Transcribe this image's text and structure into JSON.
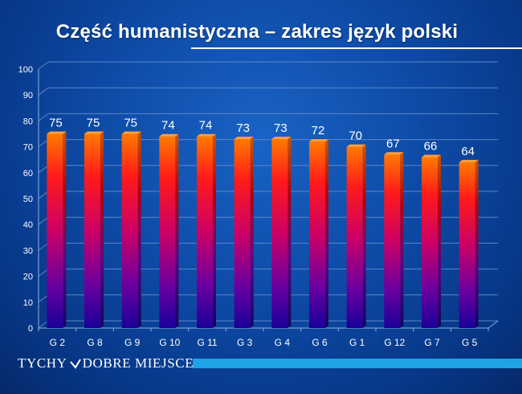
{
  "slide": {
    "title": "Część humanistyczna  – zakres język polski",
    "logo": {
      "left": "TYCHY",
      "right": "DOBRE MIEJSCE"
    }
  },
  "colors": {
    "bar_top": "#ff7a00",
    "bar_mid": "#ff0033",
    "bar_bottom": "#1a0099",
    "footer_bar": "#1fa3e6"
  },
  "chart_data": {
    "type": "bar",
    "title": "",
    "xlabel": "",
    "ylabel": "",
    "ylim": [
      0,
      100
    ],
    "yticks": [
      0,
      10,
      20,
      30,
      40,
      50,
      60,
      70,
      80,
      90,
      100
    ],
    "grid": true,
    "legend": "none",
    "categories": [
      "G 2",
      "G 8",
      "G 9",
      "G 10",
      "G 11",
      "G 3",
      "G 4",
      "G 6",
      "G 1",
      "G 12",
      "G 7",
      "G 5"
    ],
    "values": [
      75,
      75,
      75,
      74,
      74,
      73,
      73,
      72,
      70,
      67,
      66,
      64
    ]
  }
}
